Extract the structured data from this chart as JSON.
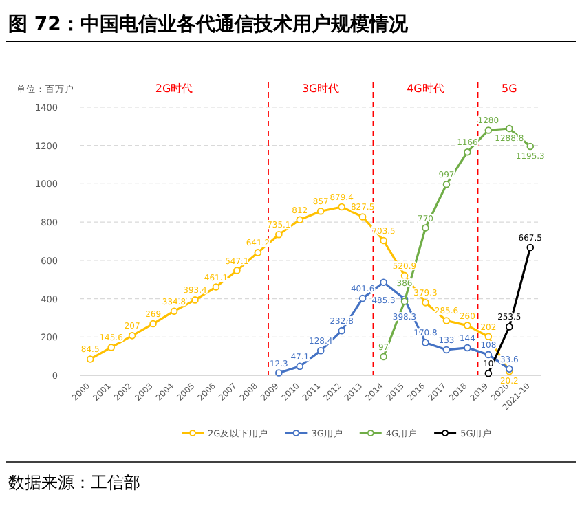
{
  "chart_data": {
    "type": "line",
    "title": "图 72：中国电信业各代通信技术用户规模情况",
    "categories": [
      "2000",
      "2001",
      "2002",
      "2003",
      "2004",
      "2005",
      "2006",
      "2007",
      "2008",
      "2009",
      "2010",
      "2011",
      "2012",
      "2013",
      "2014",
      "2015",
      "2016",
      "2017",
      "2018",
      "2019",
      "2020",
      "2021-10"
    ],
    "series": [
      {
        "name": "2G及以下用户",
        "color": "#ffc000",
        "values": [
          84.5,
          145.6,
          207.0,
          269.0,
          334.8,
          393.4,
          461.1,
          547.1,
          641.2,
          735.1,
          812.0,
          857.0,
          879.4,
          827.5,
          703.5,
          520.9,
          379.3,
          285.6,
          260.0,
          202.0,
          20.2,
          null
        ]
      },
      {
        "name": "3G用户",
        "color": "#4472c4",
        "values": [
          null,
          null,
          null,
          null,
          null,
          null,
          null,
          null,
          null,
          12.3,
          47.1,
          128.4,
          232.8,
          401.6,
          485.3,
          398.3,
          170.8,
          133.0,
          144.0,
          108.0,
          33.6,
          null
        ]
      },
      {
        "name": "4G用户",
        "color": "#70ad47",
        "values": [
          null,
          null,
          null,
          null,
          null,
          null,
          null,
          null,
          null,
          null,
          null,
          null,
          null,
          null,
          97,
          386.0,
          770.0,
          997.0,
          1166.0,
          1280.0,
          1288.8,
          1195.3
        ]
      },
      {
        "name": "5G用户",
        "color": "#000000",
        "values": [
          null,
          null,
          null,
          null,
          null,
          null,
          null,
          null,
          null,
          null,
          null,
          null,
          null,
          null,
          null,
          null,
          null,
          null,
          null,
          10.0,
          253.5,
          667.5
        ]
      }
    ],
    "ylim": [
      0,
      1400
    ],
    "yticks": [
      0,
      200,
      400,
      600,
      800,
      1000,
      1200,
      1400
    ],
    "grid": "y",
    "legend": "bottom",
    "marker": "circle",
    "data_labels": true,
    "annotations": [
      "单位：百万户",
      "2G时代",
      "3G时代",
      "4G时代",
      "5G",
      "数据来源：工信部"
    ]
  }
}
